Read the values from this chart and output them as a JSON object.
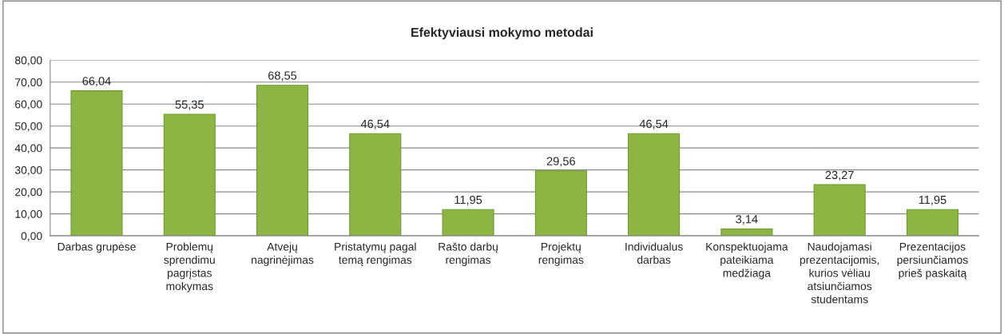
{
  "chart_data": {
    "type": "bar",
    "title": "Efektyviausi mokymo metodai",
    "categories": [
      "Darbas grupėse",
      "Problemų\nsprendimu\npagrįstas\nmokymas",
      "Atvejų\nnagrinėjimas",
      "Pristatymų pagal\ntemą rengimas",
      "Rašto darbų\nrengimas",
      "Projektų\nrengimas",
      "Individualus\ndarbas",
      "Konspektuojama\npateikiama\nmedžiaga",
      "Naudojamasi\nprezentacijomis,\nkurios vėliau\natsiunčiamos\nstudentams",
      "Prezentacijos\npersiunčiamos\nprieš paskaitą"
    ],
    "values": [
      66.04,
      55.35,
      68.55,
      46.54,
      11.95,
      29.56,
      46.54,
      3.14,
      23.27,
      11.95
    ],
    "value_labels": [
      "66,04",
      "55,35",
      "68,55",
      "46,54",
      "11,95",
      "29,56",
      "46,54",
      "3,14",
      "23,27",
      "11,95"
    ],
    "color": "#8cb543",
    "ylim": [
      0,
      80
    ],
    "yticks": [
      {
        "value": 0,
        "label": "0,00"
      },
      {
        "value": 10,
        "label": "10,00"
      },
      {
        "value": 20,
        "label": "20,00"
      },
      {
        "value": 30,
        "label": "30,00"
      },
      {
        "value": 40,
        "label": "40,00"
      },
      {
        "value": 50,
        "label": "50,00"
      },
      {
        "value": 60,
        "label": "60,00"
      },
      {
        "value": 70,
        "label": "70,00"
      },
      {
        "value": 80,
        "label": "80,00"
      }
    ],
    "grid": "y",
    "legend": false
  }
}
